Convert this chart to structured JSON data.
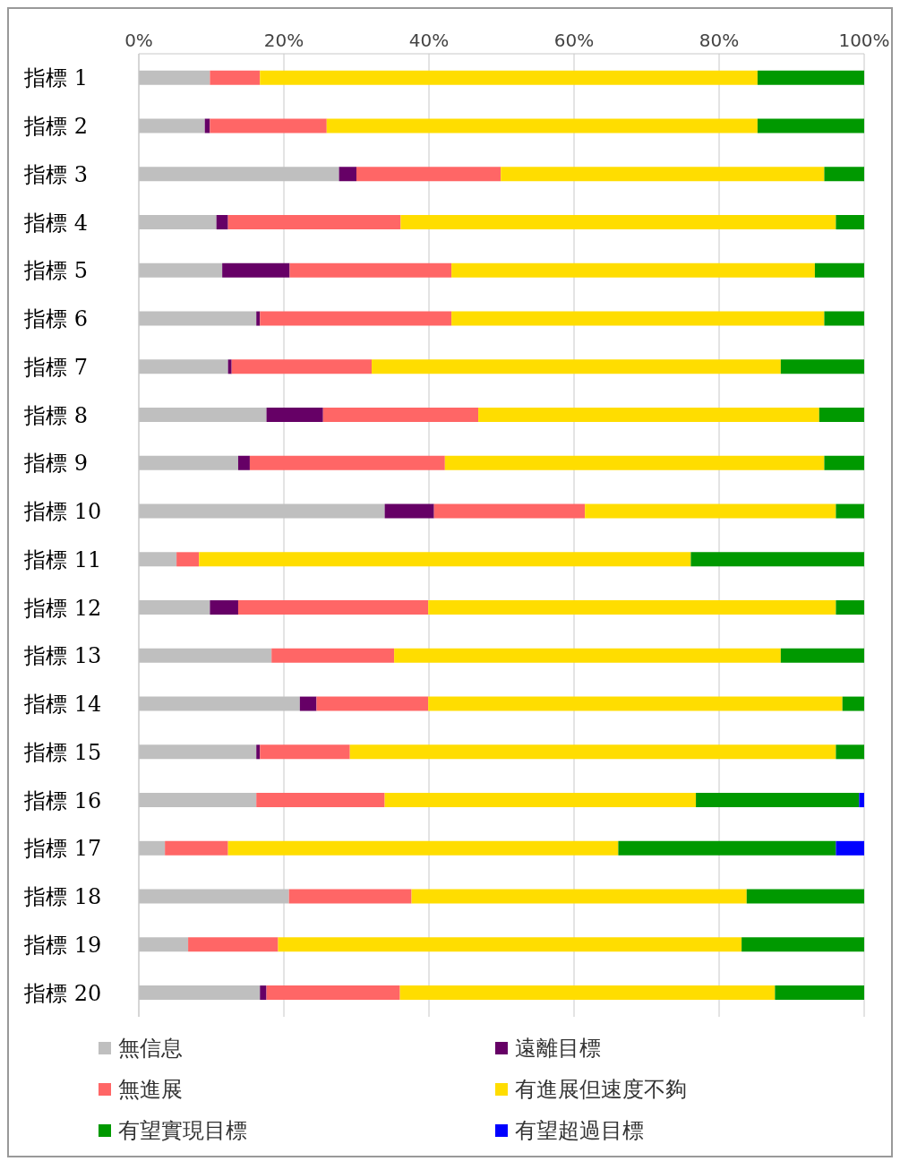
{
  "chart_data": {
    "type": "bar",
    "orientation": "horizontal",
    "stacked": true,
    "categories": [
      "指標 1",
      "指標 2",
      "指標 3",
      "指標 4",
      "指標 5",
      "指標 6",
      "指標 7",
      "指標 8",
      "指標 9",
      "指標 10",
      "指標 11",
      "指標 12",
      "指標 13",
      "指標 14",
      "指標 15",
      "指標 16",
      "指標 17",
      "指標 18",
      "指標 19",
      "指標 20"
    ],
    "series": [
      {
        "name": "無信息",
        "color": "#bfbfbf",
        "values": [
          9.8,
          9.1,
          27.6,
          10.7,
          11.5,
          16.2,
          12.3,
          17.6,
          13.7,
          33.9,
          5.2,
          9.8,
          18.3,
          22.2,
          16.2,
          16.2,
          3.6,
          20.7,
          6.8,
          16.7
        ]
      },
      {
        "name": "遠離目標",
        "color": "#660066",
        "values": [
          0,
          0.7,
          2.4,
          1.6,
          9.3,
          0.5,
          0.5,
          7.8,
          1.6,
          6.8,
          0,
          3.9,
          0,
          2.3,
          0.5,
          0,
          0,
          0,
          0,
          0.9
        ]
      },
      {
        "name": "無進展",
        "color": "#ff6666",
        "values": [
          6.9,
          16.1,
          19.9,
          23.8,
          22.3,
          26.4,
          19.3,
          21.4,
          26.9,
          20.8,
          3.1,
          26.2,
          16.9,
          15.4,
          12.4,
          17.7,
          8.7,
          16.9,
          12.4,
          18.4
        ]
      },
      {
        "name": "有進展但速度不夠",
        "color": "#ffdd00",
        "values": [
          68.6,
          59.4,
          44.6,
          60.0,
          50.1,
          51.4,
          56.4,
          47.0,
          52.3,
          34.6,
          67.8,
          56.2,
          53.3,
          57.1,
          67.0,
          42.9,
          53.8,
          46.2,
          63.9,
          51.7
        ]
      },
      {
        "name": "有望實現目標",
        "color": "#009900",
        "values": [
          14.7,
          14.7,
          5.5,
          3.9,
          6.8,
          5.5,
          11.5,
          6.2,
          5.5,
          3.9,
          23.9,
          3.9,
          11.5,
          3.0,
          3.9,
          22.5,
          30.0,
          16.2,
          16.9,
          12.3
        ]
      },
      {
        "name": "有望超過目標",
        "color": "#0000ff",
        "values": [
          0,
          0,
          0,
          0,
          0,
          0,
          0,
          0,
          0,
          0,
          0,
          0,
          0,
          0,
          0,
          0.7,
          3.9,
          0,
          0,
          0
        ]
      }
    ],
    "xlim": [
      0,
      100
    ],
    "xticks": [
      {
        "value": 0,
        "label": "0%"
      },
      {
        "value": 20,
        "label": "20%"
      },
      {
        "value": 40,
        "label": "40%"
      },
      {
        "value": 60,
        "label": "60%"
      },
      {
        "value": 80,
        "label": "80%"
      },
      {
        "value": 100,
        "label": "100%"
      }
    ],
    "grid": "x",
    "legend": "bottom"
  }
}
